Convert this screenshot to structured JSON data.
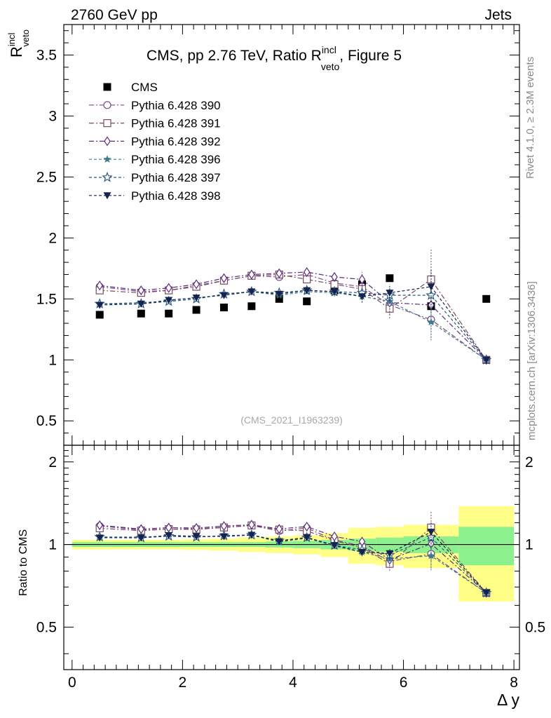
{
  "header": {
    "left": "2760 GeV pp",
    "right": "Jets"
  },
  "side_labels": {
    "rivet": "Rivet 4.1.0, ≥ 2.3M events",
    "mcplots": "mcplots.cern.ch [arXiv:1306.3436]"
  },
  "chart_data": {
    "type": "scatter",
    "title_main": "CMS, pp 2.76 TeV, Ratio R",
    "title_sup": "incl",
    "title_sub": "veto",
    "title_tail": ", Figure 5",
    "ylabel_main": "R",
    "ylabel_sup": "incl",
    "ylabel_sub": "veto",
    "xlabel": "Δ y",
    "ratio_ylabel": "Ratio to CMS",
    "watermark": "(CMS_2021_I1963239)",
    "xlim": [
      -0.15,
      8.1
    ],
    "ylim": [
      0.3,
      3.75
    ],
    "ratio_ylim": [
      0.35,
      2.3
    ],
    "x_ticks": [
      "0",
      "2",
      "4",
      "6",
      "8"
    ],
    "y_ticks": [
      "0.5",
      "1",
      "1.5",
      "2",
      "2.5",
      "3",
      "3.5"
    ],
    "ratio_y_ticks": [
      "0.5",
      "1",
      "2"
    ],
    "x": [
      0.5,
      1.25,
      1.75,
      2.25,
      2.75,
      3.25,
      3.75,
      4.25,
      4.75,
      5.25,
      5.75,
      6.5,
      7.5
    ],
    "x_bins": [
      [
        0,
        1
      ],
      [
        1,
        1.5
      ],
      [
        1.5,
        2
      ],
      [
        2,
        2.5
      ],
      [
        2.5,
        3
      ],
      [
        3,
        3.5
      ],
      [
        3.5,
        4
      ],
      [
        4,
        4.5
      ],
      [
        4.5,
        5
      ],
      [
        5,
        5.5
      ],
      [
        5.5,
        6
      ],
      [
        6,
        7
      ],
      [
        7,
        8
      ]
    ],
    "band_inner": [
      0.02,
      0.02,
      0.02,
      0.02,
      0.02,
      0.02,
      0.025,
      0.03,
      0.04,
      0.05,
      0.06,
      0.07,
      0.16
    ],
    "band_outer": [
      0.04,
      0.04,
      0.04,
      0.045,
      0.05,
      0.06,
      0.07,
      0.08,
      0.1,
      0.15,
      0.16,
      0.18,
      0.38
    ],
    "series": [
      {
        "name": "CMS",
        "color": "#000000",
        "marker": "square-filled",
        "dash": "",
        "values": [
          1.37,
          1.38,
          1.38,
          1.41,
          1.43,
          1.44,
          1.5,
          1.48,
          1.57,
          1.62,
          1.67,
          1.44,
          1.5
        ]
      },
      {
        "name": "Pythia 6.428 390",
        "color": "#7a4a86",
        "marker": "circle-open",
        "dash": "7,3,2,3",
        "values": [
          1.6,
          1.56,
          1.57,
          1.61,
          1.65,
          1.69,
          1.68,
          1.7,
          1.63,
          1.6,
          1.45,
          1.33,
          1.0
        ],
        "errors": [
          0.01,
          0.01,
          0.01,
          0.01,
          0.01,
          0.01,
          0.01,
          0.02,
          0.03,
          0.06,
          0.08,
          0.15,
          0
        ]
      },
      {
        "name": "Pythia 6.428 391",
        "color": "#7a4a5e",
        "marker": "square-open",
        "dash": "7,3,2,3",
        "values": [
          1.57,
          1.55,
          1.57,
          1.6,
          1.65,
          1.69,
          1.7,
          1.66,
          1.62,
          1.58,
          1.42,
          1.66,
          1.0
        ],
        "errors": [
          0.01,
          0.01,
          0.01,
          0.01,
          0.01,
          0.01,
          0.01,
          0.02,
          0.03,
          0.06,
          0.08,
          0.25,
          0
        ]
      },
      {
        "name": "Pythia 6.428 392",
        "color": "#5a2e82",
        "marker": "diamond-open",
        "dash": "7,3,2,3",
        "values": [
          1.61,
          1.57,
          1.59,
          1.62,
          1.67,
          1.7,
          1.71,
          1.72,
          1.68,
          1.66,
          1.47,
          1.45,
          1.0
        ],
        "errors": [
          0.01,
          0.01,
          0.01,
          0.01,
          0.01,
          0.01,
          0.01,
          0.02,
          0.03,
          0.06,
          0.08,
          0.2,
          0
        ]
      },
      {
        "name": "Pythia 6.428 396",
        "color": "#3e7a8c",
        "marker": "star-filled",
        "dash": "4,3",
        "values": [
          1.46,
          1.47,
          1.48,
          1.5,
          1.54,
          1.56,
          1.53,
          1.56,
          1.55,
          1.52,
          1.48,
          1.31,
          1.0
        ],
        "errors": [
          0.01,
          0.01,
          0.01,
          0.01,
          0.01,
          0.01,
          0.01,
          0.02,
          0.03,
          0.05,
          0.07,
          0.15,
          0
        ]
      },
      {
        "name": "Pythia 6.428 397",
        "color": "#2e5a80",
        "marker": "star-open",
        "dash": "4,3",
        "values": [
          1.46,
          1.46,
          1.48,
          1.5,
          1.54,
          1.56,
          1.55,
          1.57,
          1.56,
          1.55,
          1.53,
          1.53,
          1.0
        ],
        "errors": [
          0.01,
          0.01,
          0.01,
          0.01,
          0.01,
          0.01,
          0.01,
          0.02,
          0.03,
          0.05,
          0.07,
          0.15,
          0
        ]
      },
      {
        "name": "Pythia 6.428 398",
        "color": "#14244e",
        "marker": "triangle-down-filled",
        "dash": "4,3",
        "values": [
          1.45,
          1.46,
          1.49,
          1.51,
          1.53,
          1.56,
          1.54,
          1.57,
          1.56,
          1.52,
          1.55,
          1.6,
          1.0
        ],
        "errors": [
          0.01,
          0.01,
          0.01,
          0.01,
          0.01,
          0.01,
          0.01,
          0.02,
          0.03,
          0.05,
          0.07,
          0.15,
          0
        ]
      }
    ]
  }
}
